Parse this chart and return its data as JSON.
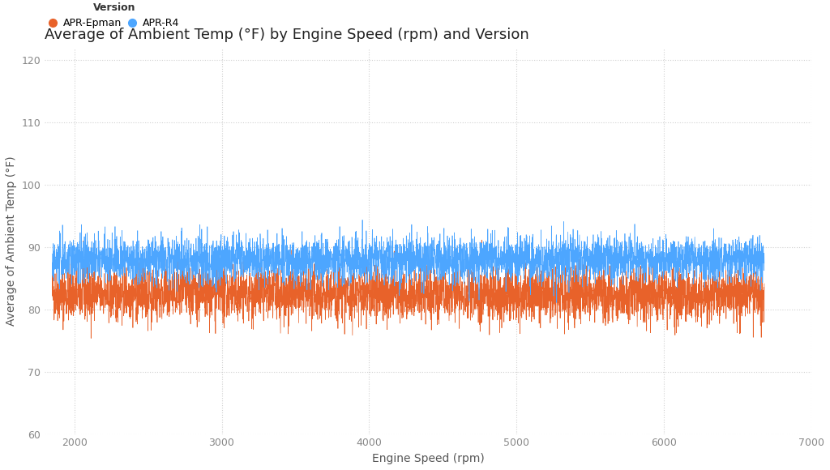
{
  "title": "Average of Ambient Temp (°F) by Engine Speed (rpm) and Version",
  "xlabel": "Engine Speed (rpm)",
  "ylabel": "Average of Ambient Temp (°F)",
  "legend_title": "Version",
  "series": [
    {
      "label": "APR-Epman",
      "color": "#E8622A",
      "base_value": 82.5,
      "noise_std": 2.2,
      "x_start": 1850,
      "x_end": 6680
    },
    {
      "label": "APR-R4",
      "color": "#4DA6FF",
      "base_value": 88.0,
      "noise_std": 1.8,
      "x_start": 1850,
      "x_end": 6680
    }
  ],
  "xlim": [
    1800,
    7000
  ],
  "ylim": [
    60,
    122
  ],
  "yticks": [
    60,
    70,
    80,
    90,
    100,
    110,
    120
  ],
  "xticks": [
    2000,
    3000,
    4000,
    5000,
    6000,
    7000
  ],
  "background_color": "#ffffff",
  "grid_color": "#cccccc",
  "title_fontsize": 13,
  "axis_label_fontsize": 10,
  "tick_fontsize": 9,
  "legend_fontsize": 9,
  "line_width": 0.5,
  "n_points": 4800
}
